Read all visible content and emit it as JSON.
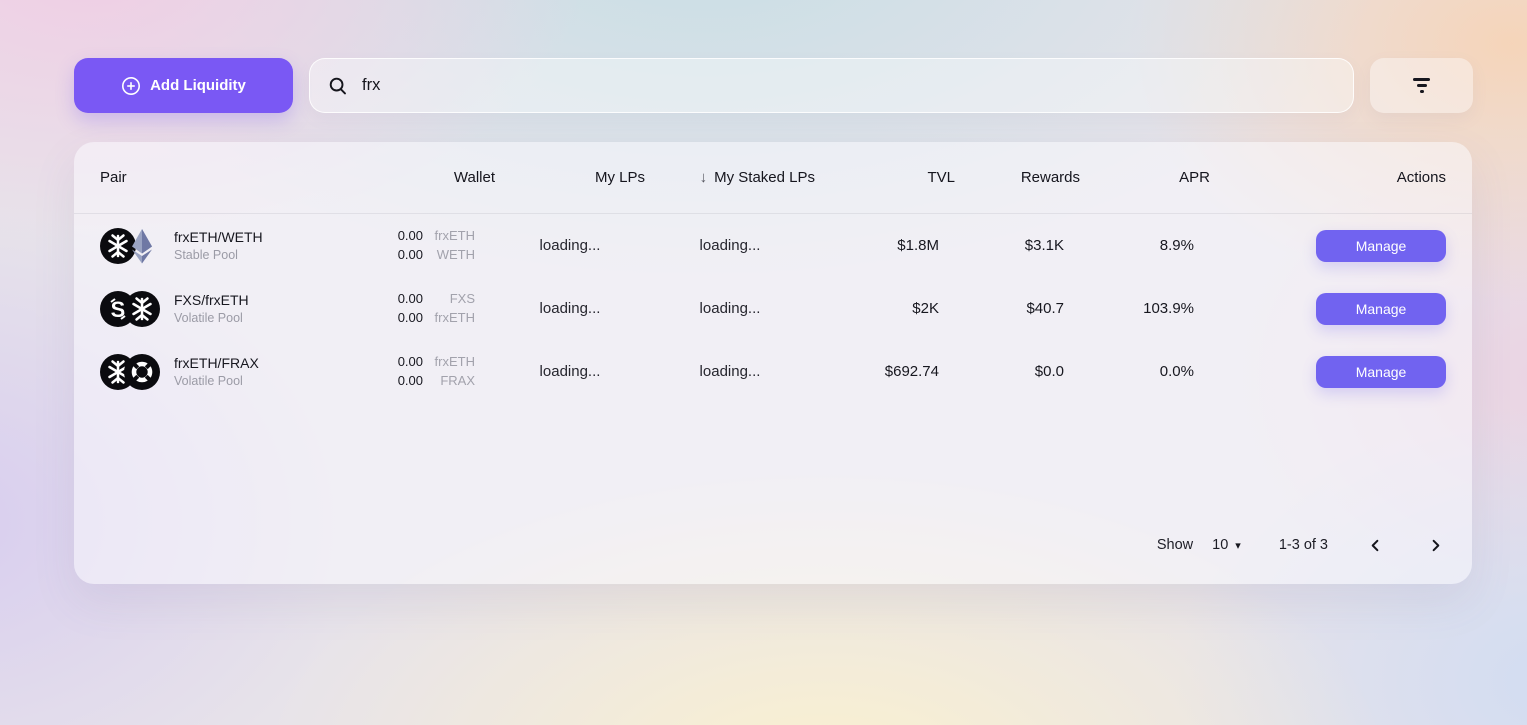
{
  "colors": {
    "accent_primary": "#7a58f4",
    "accent_manage": "#7163f0",
    "text_primary": "#17171f",
    "text_muted": "#9b9ba6"
  },
  "toolbar": {
    "add_liquidity_label": "Add Liquidity",
    "search_value": "frx",
    "filter_icon": "filter-lines"
  },
  "table": {
    "columns": [
      {
        "label": "Pair"
      },
      {
        "label": "Wallet"
      },
      {
        "label": "My LPs"
      },
      {
        "label": "My Staked LPs"
      },
      {
        "label": "TVL"
      },
      {
        "label": "Rewards"
      },
      {
        "label": "APR"
      },
      {
        "label": "Actions"
      }
    ],
    "sorted_column_index": 3,
    "sort_icon": "↓",
    "rows": [
      {
        "pair": "frxETH/WETH",
        "pool_type": "Stable Pool",
        "icons": [
          "frxeth",
          "weth"
        ],
        "wallet": [
          {
            "amount": "0.00",
            "symbol": "frxETH"
          },
          {
            "amount": "0.00",
            "symbol": "WETH"
          }
        ],
        "my_lps": "loading...",
        "my_staked_lps": "loading...",
        "tvl": "$1.8M",
        "rewards": "$3.1K",
        "apr": "8.9%",
        "action_label": "Manage"
      },
      {
        "pair": "FXS/frxETH",
        "pool_type": "Volatile Pool",
        "icons": [
          "fxs",
          "frxeth"
        ],
        "wallet": [
          {
            "amount": "0.00",
            "symbol": "FXS"
          },
          {
            "amount": "0.00",
            "symbol": "frxETH"
          }
        ],
        "my_lps": "loading...",
        "my_staked_lps": "loading...",
        "tvl": "$2K",
        "rewards": "$40.7",
        "apr": "103.9%",
        "action_label": "Manage"
      },
      {
        "pair": "frxETH/FRAX",
        "pool_type": "Volatile Pool",
        "icons": [
          "frxeth",
          "frax"
        ],
        "wallet": [
          {
            "amount": "0.00",
            "symbol": "frxETH"
          },
          {
            "amount": "0.00",
            "symbol": "FRAX"
          }
        ],
        "my_lps": "loading...",
        "my_staked_lps": "loading...",
        "tvl": "$692.74",
        "rewards": "$0.0",
        "apr": "0.0%",
        "action_label": "Manage"
      }
    ]
  },
  "pagination": {
    "show_label": "Show",
    "page_size": "10",
    "range_label": "1-3 of 3"
  }
}
